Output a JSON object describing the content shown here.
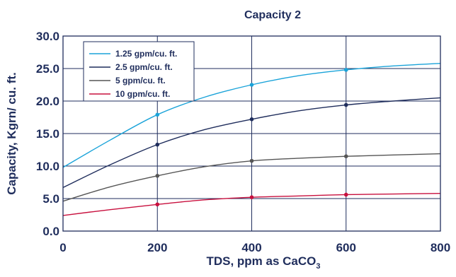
{
  "chart_data": {
    "type": "line",
    "title": "Capacity 2",
    "xlabel": "TDS, ppm as CaCO",
    "xlabel_subscript": "3",
    "ylabel": "Capacity, Kgrn/ cu. ft.",
    "xlim": [
      0,
      800
    ],
    "ylim": [
      0,
      30
    ],
    "x_ticks": [
      0,
      200,
      400,
      600,
      800
    ],
    "x_tick_labels": [
      "0",
      "200",
      "400",
      "600",
      "800"
    ],
    "y_ticks": [
      0,
      5,
      10,
      15,
      20,
      25,
      30
    ],
    "y_tick_labels": [
      "0.0",
      "5.0",
      "10.0",
      "15.0",
      "20.0",
      "25.0",
      "30.0"
    ],
    "grid": true,
    "legend_position": "top-left",
    "series": [
      {
        "name": "1.25 gpm/cu. ft.",
        "color": "#1aa3d9",
        "x": [
          0,
          100,
          200,
          300,
          400,
          500,
          600,
          700,
          800
        ],
        "values": [
          9.8,
          14.0,
          17.9,
          20.6,
          22.5,
          23.9,
          24.8,
          25.4,
          25.8
        ],
        "markers_x": [
          200,
          400,
          600
        ],
        "markers_y": [
          17.9,
          22.5,
          24.8
        ]
      },
      {
        "name": "2.5 gpm/cu. ft.",
        "color": "#1f2d5c",
        "x": [
          0,
          100,
          200,
          300,
          400,
          500,
          600,
          700,
          800
        ],
        "values": [
          6.7,
          10.2,
          13.3,
          15.6,
          17.2,
          18.5,
          19.4,
          20.0,
          20.5
        ],
        "markers_x": [
          200,
          400,
          600
        ],
        "markers_y": [
          13.3,
          17.2,
          19.4
        ]
      },
      {
        "name": "5 gpm/cu. ft.",
        "color": "#555555",
        "x": [
          0,
          100,
          200,
          300,
          400,
          500,
          600,
          700,
          800
        ],
        "values": [
          4.6,
          6.8,
          8.5,
          9.9,
          10.8,
          11.2,
          11.5,
          11.7,
          11.9
        ],
        "markers_x": [
          200,
          400,
          600
        ],
        "markers_y": [
          8.5,
          10.8,
          11.5
        ]
      },
      {
        "name": "10 gpm/cu. ft.",
        "color": "#c8103e",
        "x": [
          0,
          100,
          200,
          300,
          400,
          500,
          600,
          700,
          800
        ],
        "values": [
          2.4,
          3.3,
          4.1,
          4.8,
          5.2,
          5.4,
          5.6,
          5.7,
          5.8
        ],
        "markers_x": [
          200,
          400,
          600
        ],
        "markers_y": [
          4.1,
          5.2,
          5.6
        ]
      }
    ]
  }
}
